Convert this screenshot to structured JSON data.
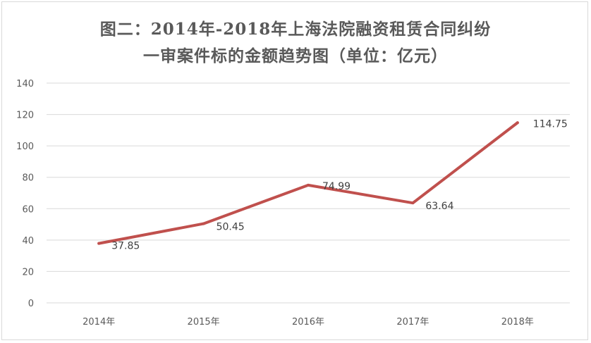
{
  "chart_data": {
    "type": "line",
    "title_line1": "图二：2014年-2018年上海法院融资租赁合同纠纷",
    "title_line2": "一审案件标的金额趋势图（单位：亿元）",
    "categories": [
      "2014年",
      "2015年",
      "2016年",
      "2017年",
      "2018年"
    ],
    "series": [
      {
        "values": [
          37.85,
          50.45,
          74.99,
          63.64,
          114.75
        ],
        "data_labels": [
          "37.85",
          "50.45",
          "74.99",
          "63.64",
          "114.75"
        ],
        "color": "#c0504d"
      }
    ],
    "y_ticks": [
      "0",
      "20",
      "40",
      "60",
      "80",
      "100",
      "120",
      "140"
    ],
    "ylim": [
      0,
      140
    ],
    "grid": true,
    "legend": "none"
  }
}
